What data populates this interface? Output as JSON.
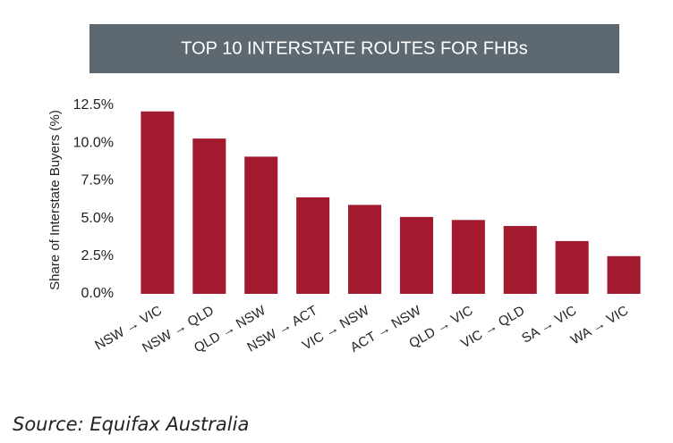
{
  "chart_data": {
    "type": "bar",
    "title": "TOP 10 INTERSTATE ROUTES FOR FHBs",
    "y_label": "Share of Interstate Buyers (%)",
    "categories": [
      "NSW → VIC",
      "NSW → QLD",
      "QLD → NSW",
      "NSW → ACT",
      "VIC → NSW",
      "ACT → NSW",
      "QLD → VIC",
      "VIC → QLD",
      "SA → VIC",
      "WA → VIC"
    ],
    "values": [
      12.1,
      10.3,
      9.1,
      6.4,
      5.9,
      5.1,
      4.9,
      4.5,
      3.5,
      2.5
    ],
    "color": "#a31a2e",
    "ylim": [
      0,
      12.5
    ],
    "yticks": [
      {
        "value": 0,
        "label": "0.0%"
      },
      {
        "value": 2.5,
        "label": "2.5%"
      },
      {
        "value": 5,
        "label": "5.0%"
      },
      {
        "value": 7.5,
        "label": "7.5%"
      },
      {
        "value": 10,
        "label": "10.0%"
      },
      {
        "value": 12.5,
        "label": "12.5%"
      }
    ],
    "grid": false
  },
  "source": "Source: Equifax Australia"
}
